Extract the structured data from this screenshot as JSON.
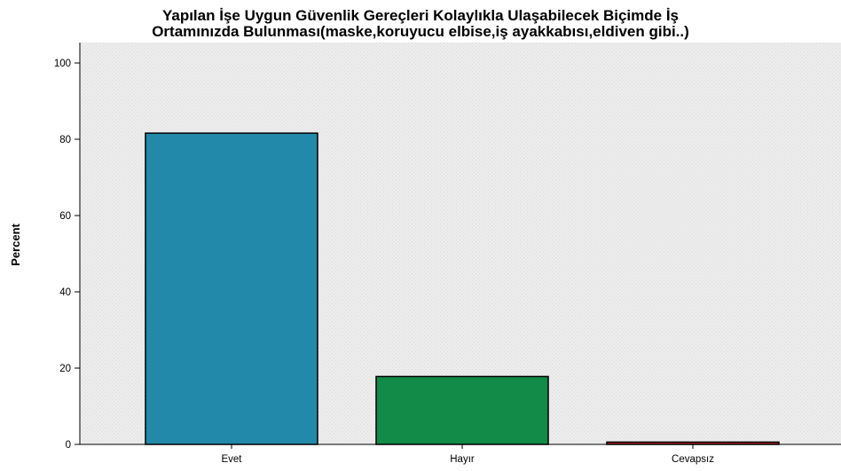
{
  "chart_data": {
    "type": "bar",
    "title_lines": [
      "Yapılan İşe Uygun Güvenlik Gereçleri Kolaylıkla Ulaşabilecek Biçimde İş",
      "Ortamınızda Bulunması(maske,koruyucu elbise,iş ayakkabısı,eldiven gibi..)"
    ],
    "xlabel": "",
    "ylabel": "Percent",
    "categories": [
      "Evet",
      "Hayır",
      "Cevapsız"
    ],
    "values": [
      81.6,
      17.8,
      0.6
    ],
    "bar_colors": [
      "#2389ab",
      "#128a48",
      "#c0252a"
    ],
    "ylim": [
      0,
      100
    ],
    "yticks": [
      0,
      20,
      40,
      60,
      80,
      100
    ],
    "plot_background": "#ececec",
    "grid": false,
    "legend": "none"
  }
}
